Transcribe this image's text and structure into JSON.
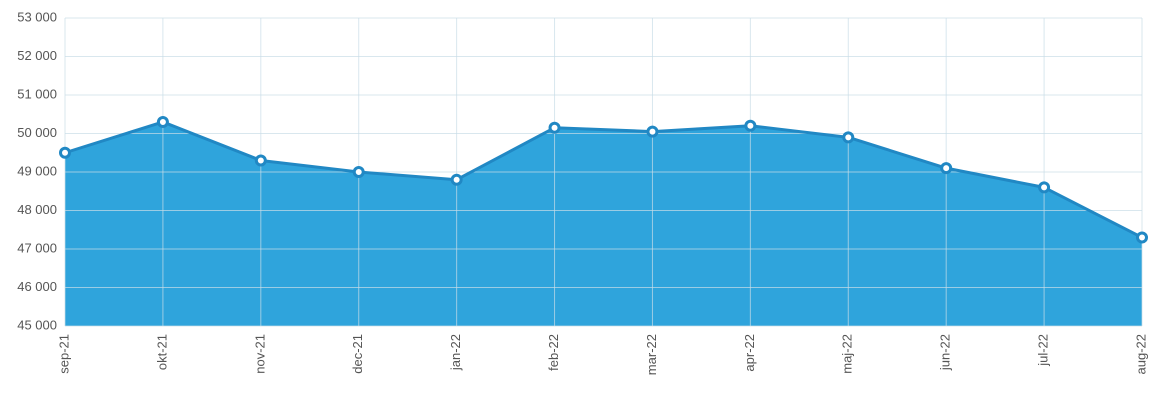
{
  "chart_data": {
    "type": "area",
    "categories": [
      "sep-21",
      "okt-21",
      "nov-21",
      "dec-21",
      "jan-22",
      "feb-22",
      "mar-22",
      "apr-22",
      "maj-22",
      "jun-22",
      "jul-22",
      "aug-22"
    ],
    "values": [
      49500,
      50300,
      49300,
      49000,
      48800,
      50150,
      50050,
      50200,
      49900,
      49100,
      48600,
      47300
    ],
    "color": "#2fa4dc",
    "line_color": "#2188c4",
    "ylim": [
      45000,
      53000
    ],
    "yticks": [
      {
        "value": 45000,
        "label": "45 000"
      },
      {
        "value": 46000,
        "label": "46 000"
      },
      {
        "value": 47000,
        "label": "47 000"
      },
      {
        "value": 48000,
        "label": "48 000"
      },
      {
        "value": 49000,
        "label": "49 000"
      },
      {
        "value": 50000,
        "label": "50 000"
      },
      {
        "value": 51000,
        "label": "51 000"
      },
      {
        "value": 52000,
        "label": "52 000"
      },
      {
        "value": 53000,
        "label": "53 000"
      }
    ],
    "grid": true
  }
}
